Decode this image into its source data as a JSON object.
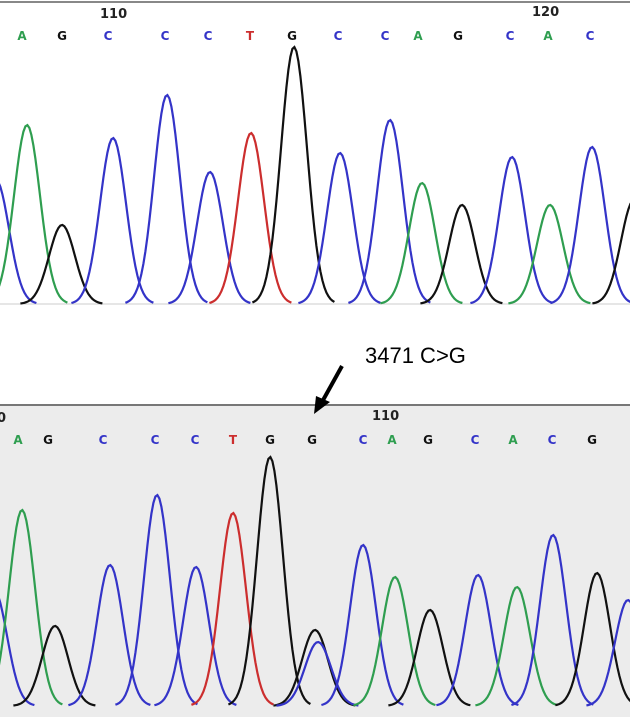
{
  "top_panel": {
    "positions": [
      "110",
      "120"
    ],
    "bases": [
      "A",
      "G",
      "C",
      "C",
      "C",
      "T",
      "G",
      "C",
      "C",
      "A",
      "G",
      "C",
      "A",
      "C"
    ]
  },
  "annotation": "3471 C>G",
  "bottom_panel": {
    "positions": [
      "0",
      "110"
    ],
    "bases": [
      "A",
      "G",
      "C",
      "C",
      "C",
      "T",
      "G",
      "G",
      "C",
      "A",
      "G",
      "C",
      "A",
      "C",
      "G"
    ]
  }
}
